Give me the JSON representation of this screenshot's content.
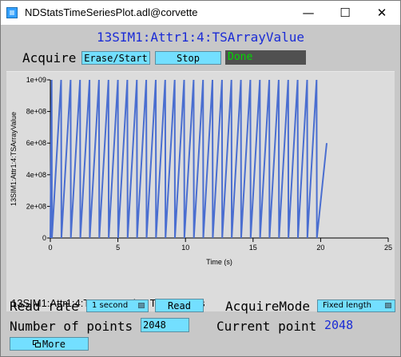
{
  "window": {
    "title": "NDStatsTimeSeriesPlot.adl@corvette",
    "minimize": "—",
    "maximize": "☐",
    "close": "✕"
  },
  "header": {
    "pv_name": "13SIM1:Attr1:4:TSArrayValue"
  },
  "acquire": {
    "label": "Acquire",
    "erase_start": "Erase/Start",
    "stop": "Stop",
    "status": "Done",
    "status_color": "#00d800"
  },
  "plot": {
    "caption": "13SIM1:Attr1:4:TSArrayValue Time Series",
    "line_color": "#4a6ed0"
  },
  "chart_data": {
    "type": "line",
    "xlabel": "Time (s)",
    "ylabel": "13SIM1:Attr1:4:TSArrayValue",
    "xlim": [
      0,
      25
    ],
    "ylim": [
      0,
      1000000000
    ],
    "x_ticks": [
      "0",
      "5",
      "10",
      "15",
      "20",
      "25"
    ],
    "y_ticks": [
      "0",
      "2e+08",
      "4e+08",
      "6e+08",
      "8e+08",
      "1e+09"
    ],
    "series": [
      {
        "points": [
          [
            0.0,
            0.0
          ],
          [
            0.1,
            1000000000
          ],
          [
            0.12,
            0.0
          ],
          [
            0.8,
            1000000000
          ],
          [
            0.82,
            0.0
          ],
          [
            1.5,
            1000000000
          ],
          [
            1.52,
            0.0
          ],
          [
            2.2,
            1000000000
          ],
          [
            2.22,
            0.0
          ],
          [
            2.9,
            1000000000
          ],
          [
            2.92,
            0.0
          ],
          [
            3.6,
            1000000000
          ],
          [
            3.62,
            0.0
          ],
          [
            4.3,
            1000000000
          ],
          [
            4.32,
            0.0
          ],
          [
            5.0,
            1000000000
          ],
          [
            5.02,
            0.0
          ],
          [
            5.7,
            1000000000
          ],
          [
            5.72,
            0.0
          ],
          [
            6.4,
            1000000000
          ],
          [
            6.42,
            0.0
          ],
          [
            7.1,
            1000000000
          ],
          [
            7.12,
            0.0
          ],
          [
            7.8,
            1000000000
          ],
          [
            7.82,
            0.0
          ],
          [
            8.5,
            1000000000
          ],
          [
            8.52,
            0.0
          ],
          [
            9.2,
            1000000000
          ],
          [
            9.22,
            0.0
          ],
          [
            9.9,
            1000000000
          ],
          [
            9.92,
            0.0
          ],
          [
            10.6,
            1000000000
          ],
          [
            10.62,
            0.0
          ],
          [
            11.3,
            1000000000
          ],
          [
            11.32,
            0.0
          ],
          [
            12.0,
            1000000000
          ],
          [
            12.02,
            0.0
          ],
          [
            12.7,
            1000000000
          ],
          [
            12.72,
            0.0
          ],
          [
            13.4,
            1000000000
          ],
          [
            13.42,
            0.0
          ],
          [
            14.1,
            1000000000
          ],
          [
            14.12,
            0.0
          ],
          [
            14.8,
            1000000000
          ],
          [
            14.82,
            0.0
          ],
          [
            15.5,
            1000000000
          ],
          [
            15.52,
            0.0
          ],
          [
            16.2,
            1000000000
          ],
          [
            16.22,
            0.0
          ],
          [
            16.9,
            1000000000
          ],
          [
            16.92,
            0.0
          ],
          [
            17.6,
            1000000000
          ],
          [
            17.62,
            0.0
          ],
          [
            18.3,
            1000000000
          ],
          [
            18.32,
            0.0
          ],
          [
            19.0,
            1000000000
          ],
          [
            19.02,
            0.0
          ],
          [
            19.7,
            1000000000
          ],
          [
            19.72,
            0.0
          ],
          [
            20.45,
            600000000
          ]
        ]
      }
    ]
  },
  "controls": {
    "read_rate_label": "Read rate",
    "read_rate_value": "1 second",
    "read_button": "Read",
    "acquire_mode_label": "AcquireMode",
    "acquire_mode_value": "Fixed length",
    "num_points_label": "Number of points",
    "num_points_value": "2048",
    "current_point_label": "Current point",
    "current_point_value": "2048",
    "more_button": "More",
    "more_icon": "window-icon"
  }
}
